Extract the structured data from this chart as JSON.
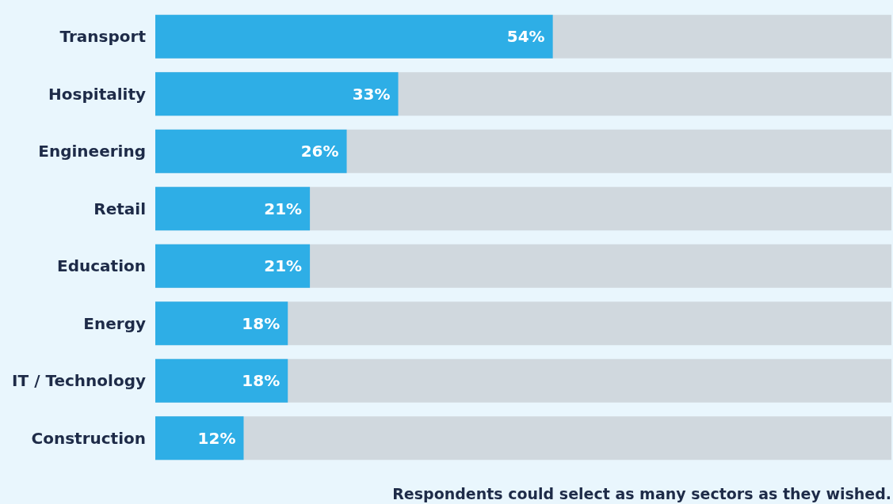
{
  "chart_data": {
    "type": "bar",
    "orientation": "horizontal",
    "categories": [
      "Transport",
      "Hospitality",
      "Engineering",
      "Retail",
      "Education",
      "Energy",
      "IT / Technology",
      "Construction"
    ],
    "values": [
      54,
      33,
      26,
      21,
      21,
      18,
      18,
      12
    ],
    "value_labels": [
      "54%",
      "33%",
      "26%",
      "21%",
      "21%",
      "18%",
      "18%",
      "12%"
    ],
    "color": "#2eaee6",
    "xlim": [
      0,
      100
    ],
    "grid": false,
    "annotations": [
      "Respondents could select as many sectors as they wished."
    ]
  }
}
